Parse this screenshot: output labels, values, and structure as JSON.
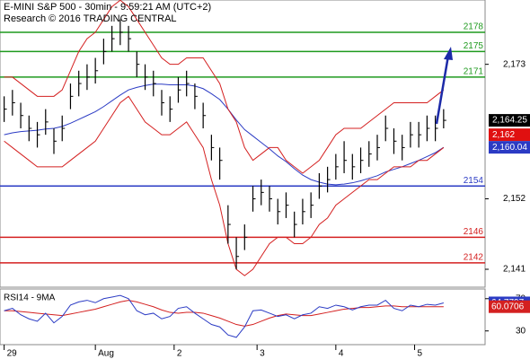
{
  "chart_data": {
    "type": "ohlc",
    "title": "E-MINI S&P 500 - 30min - 9:59:21 AM (UTC+2)",
    "subtitle": "Research © 2016 TRADING CENTRAL",
    "xlim": [
      -0.5,
      58
    ],
    "xticks": [
      {
        "value": 0,
        "label": "29"
      },
      {
        "value": 11,
        "label": "Aug"
      },
      {
        "value": 20.5,
        "label": "2"
      },
      {
        "value": 30.5,
        "label": "3"
      },
      {
        "value": 40,
        "label": "4"
      },
      {
        "value": 49.5,
        "label": "5"
      }
    ],
    "ylim": [
      2138.2,
      2183.04
    ],
    "yticks": [
      {
        "value": 2173,
        "label": "2,173"
      },
      {
        "value": 2152,
        "label": "2,152"
      },
      {
        "value": 2141,
        "label": "2,141"
      }
    ],
    "bar_color": "#000000",
    "high": [
      2168,
      2169,
      2167,
      2165,
      2164,
      2166,
      2163,
      2165,
      2170,
      2172,
      2173,
      2174,
      2177,
      2179,
      2180,
      2179,
      2175,
      2173,
      2172,
      2169,
      2168,
      2171,
      2172,
      2170,
      2167,
      2162,
      2160,
      2151,
      2146,
      2148,
      2154,
      2155,
      2154,
      2152,
      2153,
      2150,
      2152,
      2153,
      2156,
      2157,
      2159,
      2161,
      2159,
      2160,
      2161,
      2162,
      2165,
      2163,
      2162,
      2164,
      2164,
      2165,
      2165,
      2166
    ],
    "low": [
      2164,
      2165,
      2163,
      2161,
      2160,
      2162,
      2159,
      2161,
      2166,
      2168,
      2169,
      2170,
      2173,
      2175,
      2176,
      2175,
      2171,
      2169,
      2168,
      2165,
      2164,
      2167,
      2168,
      2166,
      2163,
      2158,
      2155,
      2145,
      2141,
      2144,
      2150,
      2151,
      2150,
      2148,
      2149,
      2146,
      2148,
      2149,
      2152,
      2153,
      2155,
      2156,
      2155,
      2156,
      2157,
      2158,
      2161,
      2159,
      2158,
      2160,
      2160,
      2161,
      2161,
      2163
    ],
    "close": [
      2166,
      2167,
      2165,
      2163,
      2162,
      2164,
      2161,
      2163,
      2168,
      2170,
      2171,
      2172,
      2175,
      2177,
      2178,
      2177,
      2173,
      2171,
      2170,
      2167,
      2166,
      2169,
      2170,
      2168,
      2165,
      2160,
      2158,
      2148,
      2143,
      2146,
      2152,
      2153,
      2152,
      2150,
      2151,
      2148,
      2150,
      2151,
      2154,
      2155,
      2157,
      2158,
      2157,
      2158,
      2159,
      2160,
      2163,
      2161,
      2160,
      2162,
      2162,
      2163,
      2163,
      2164.25
    ],
    "series": [
      {
        "color": "#2b3bc4",
        "values": [
          2162,
          2162.3,
          2162.5,
          2162.6,
          2162.7,
          2162.9,
          2163,
          2163.3,
          2163.8,
          2164.4,
          2165,
          2165.6,
          2166.4,
          2167.3,
          2168.2,
          2169,
          2169.4,
          2169.7,
          2169.9,
          2169.9,
          2169.8,
          2169.8,
          2169.8,
          2169.6,
          2169.2,
          2168.4,
          2167.5,
          2166,
          2164.3,
          2162.8,
          2161.8,
          2160.8,
          2159.8,
          2158.7,
          2157.8,
          2156.7,
          2155.7,
          2155,
          2154.6,
          2154.3,
          2154.2,
          2154.3,
          2154.5,
          2154.8,
          2155.2,
          2155.6,
          2156.2,
          2156.6,
          2157,
          2157.5,
          2158,
          2158.6,
          2159.2,
          2160.04
        ]
      },
      {
        "color": "#d42020",
        "values": [
          2171,
          2171,
          2170,
          2169,
          2168,
          2168,
          2168,
          2169,
          2172,
          2175,
          2177,
          2178,
          2180,
          2182,
          2183,
          2182,
          2180,
          2178,
          2176,
          2174,
          2173,
          2173,
          2174,
          2174,
          2174,
          2172,
          2170,
          2166,
          2164,
          2160,
          2158,
          2159,
          2160,
          2160,
          2158,
          2157,
          2156,
          2157,
          2158,
          2160,
          2162,
          2163,
          2163,
          2163,
          2164,
          2165,
          2166,
          2167,
          2167,
          2167,
          2167,
          2167,
          2168,
          2169
        ]
      },
      {
        "color": "#d42020",
        "values": [
          2161,
          2160,
          2159,
          2158,
          2157,
          2157,
          2157,
          2157,
          2158,
          2159,
          2160,
          2161,
          2163,
          2165,
          2167,
          2168,
          2166,
          2164,
          2163,
          2162,
          2162,
          2163,
          2164,
          2162,
          2160,
          2155,
          2151,
          2145,
          2141,
          2140,
          2141,
          2143,
          2145,
          2146,
          2146,
          2145,
          2145,
          2146,
          2148,
          2149,
          2151,
          2152,
          2153,
          2154,
          2155,
          2155,
          2156,
          2157,
          2157,
          2157,
          2158,
          2158,
          2159,
          2160
        ]
      }
    ],
    "levels": [
      {
        "value": 2178,
        "color": "#1f9a1f"
      },
      {
        "value": 2175,
        "color": "#1f9a1f"
      },
      {
        "value": 2171,
        "color": "#1f9a1f"
      },
      {
        "value": 2154,
        "color": "#2b3bc4"
      },
      {
        "value": 2146,
        "color": "#d42020"
      },
      {
        "value": 2142,
        "color": "#d42020"
      }
    ],
    "price_tags": [
      {
        "value": 2164.25,
        "label": "2,164.25",
        "color": "#000000"
      },
      {
        "value": 2162,
        "label": "2,162",
        "color": "#e01010"
      },
      {
        "value": 2160.04,
        "label": "2,160.04",
        "color": "#2b3bc4"
      }
    ],
    "rsi": {
      "title": "RSI14 - 9MA",
      "ylim": [
        13,
        82
      ],
      "yticks": [
        70,
        30
      ],
      "color": "#2b3bc4",
      "ma_color": "#d42020",
      "values": [
        55,
        58,
        50,
        45,
        42,
        52,
        40,
        48,
        62,
        66,
        68,
        65,
        70,
        72,
        74,
        70,
        55,
        50,
        52,
        45,
        48,
        58,
        60,
        52,
        45,
        38,
        35,
        25,
        22,
        35,
        55,
        56,
        52,
        48,
        50,
        45,
        50,
        52,
        60,
        58,
        62,
        60,
        56,
        60,
        62,
        62,
        68,
        58,
        55,
        62,
        60,
        63,
        62,
        64.7797
      ],
      "ma": [
        55,
        55,
        54,
        53,
        52,
        51,
        50,
        49,
        51,
        53,
        55,
        57,
        60,
        63,
        66,
        68,
        66,
        63,
        60,
        56,
        53,
        52,
        53,
        53,
        52,
        49,
        46,
        42,
        38,
        36,
        38,
        42,
        46,
        49,
        51,
        50,
        49,
        49,
        51,
        53,
        55,
        57,
        58,
        59,
        59,
        60,
        61,
        61,
        60,
        60,
        60,
        60,
        60,
        60.0706
      ],
      "tags": [
        {
          "value": 64.7797,
          "label": "64.7797",
          "color": "#2b3bc4"
        },
        {
          "value": 60.0706,
          "label": "60.0706",
          "color": "#d42020"
        }
      ]
    }
  }
}
